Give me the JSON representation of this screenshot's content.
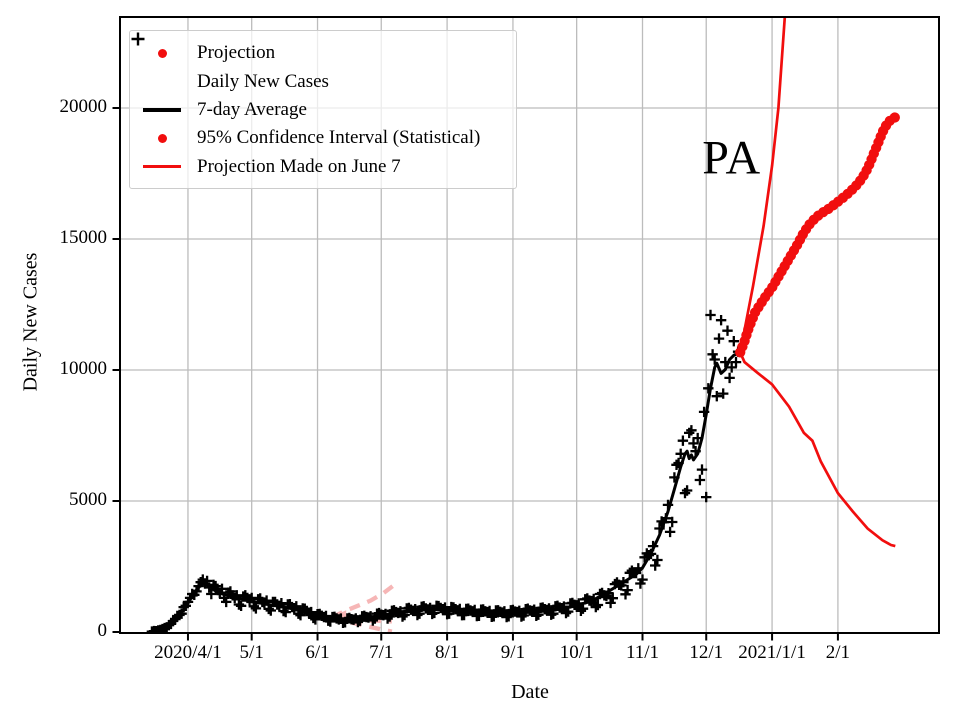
{
  "chart_data": {
    "type": "line",
    "title": "",
    "xlabel": "Date",
    "ylabel": "Daily New Cases",
    "grid": true,
    "legend_position": "upper left",
    "x_axis": {
      "day0_date": "2020/3/15",
      "tick_labels": [
        "2020/4/1",
        "5/1",
        "6/1",
        "7/1",
        "8/1",
        "9/1",
        "10/1",
        "11/1",
        "12/1",
        "2021/1/1",
        "2/1"
      ],
      "tick_days": [
        17,
        47,
        78,
        108,
        139,
        170,
        200,
        231,
        261,
        292,
        323
      ]
    },
    "y_axis": {
      "ticks": [
        0,
        5000,
        10000,
        15000,
        20000
      ],
      "range": [
        0,
        23470
      ]
    },
    "annotations": [
      {
        "text": "PA",
        "day": 273,
        "value": 18100
      }
    ],
    "series": {
      "daily_new_cases": {
        "label": "Daily New Cases",
        "marker": "plus",
        "color": "#000000",
        "start_day": 0,
        "step_days": 1,
        "values": [
          15,
          35,
          30,
          60,
          75,
          110,
          150,
          180,
          260,
          310,
          420,
          500,
          610,
          650,
          700,
          950,
          1000,
          1150,
          1300,
          1450,
          1420,
          1550,
          1750,
          1900,
          2000,
          1850,
          1950,
          1700,
          1450,
          1800,
          1750,
          1600,
          1500,
          1650,
          1300,
          1150,
          1500,
          1550,
          1400,
          1300,
          1400,
          1050,
          1000,
          1350,
          1400,
          1300,
          1200,
          1300,
          980,
          900,
          1250,
          1280,
          1150,
          1100,
          1200,
          880,
          820,
          1150,
          1150,
          1050,
          1000,
          1100,
          800,
          760,
          1050,
          1060,
          950,
          900,
          980,
          700,
          640,
          900,
          890,
          800,
          720,
          760,
          540,
          480,
          680,
          690,
          620,
          570,
          610,
          430,
          400,
          570,
          580,
          520,
          480,
          510,
          350,
          370,
          520,
          540,
          490,
          470,
          520,
          380,
          430,
          600,
          620,
          570,
          550,
          600,
          440,
          510,
          700,
          720,
          660,
          640,
          690,
          510,
          590,
          810,
          830,
          760,
          730,
          790,
          590,
          650,
          900,
          920,
          850,
          810,
          870,
          650,
          700,
          960,
          980,
          900,
          860,
          920,
          690,
          730,
          1000,
          990,
          920,
          870,
          930,
          680,
          700,
          950,
          940,
          870,
          830,
          880,
          640,
          650,
          880,
          890,
          820,
          790,
          840,
          610,
          620,
          850,
          860,
          790,
          760,
          800,
          580,
          600,
          820,
          830,
          770,
          740,
          790,
          570,
          600,
          830,
          840,
          780,
          760,
          810,
          590,
          630,
          870,
          890,
          820,
          800,
          850,
          620,
          660,
          920,
          930,
          870,
          840,
          900,
          660,
          700,
          980,
          1000,
          930,
          910,
          970,
          720,
          780,
          1090,
          1110,
          1040,
          1020,
          1090,
          810,
          890,
          1250,
          1280,
          1200,
          1180,
          1260,
          950,
          1030,
          1450,
          1490,
          1400,
          1380,
          1480,
          1110,
          1290,
          1830,
          1890,
          1800,
          1780,
          1900,
          1440,
          1600,
          2260,
          2340,
          2250,
          2250,
          2430,
          1850,
          2000,
          2850,
          3000,
          2930,
          2980,
          3280,
          2540,
          2750,
          3950,
          4220,
          4190,
          4340,
          4850,
          3820,
          4200,
          5900,
          6380,
          6450,
          6800,
          7300,
          5300,
          5400,
          7600,
          7700,
          7200,
          6900,
          7400,
          5800,
          6200,
          8400,
          5150,
          9300,
          12100,
          10600,
          10400,
          9000,
          11200,
          11900,
          9100,
          10300,
          11500,
          9700,
          10100,
          11100,
          10300,
          10700
        ]
      },
      "seven_day_average": {
        "label": "7-day Average",
        "color": "#000000",
        "points": [
          [
            0,
            20
          ],
          [
            4,
            80
          ],
          [
            8,
            250
          ],
          [
            12,
            520
          ],
          [
            17,
            1100
          ],
          [
            20,
            1500
          ],
          [
            22,
            1700
          ],
          [
            24,
            1850
          ],
          [
            27,
            1760
          ],
          [
            31,
            1500
          ],
          [
            38,
            1340
          ],
          [
            47,
            1160
          ],
          [
            54,
            1060
          ],
          [
            61,
            970
          ],
          [
            68,
            860
          ],
          [
            75,
            670
          ],
          [
            78,
            590
          ],
          [
            82,
            520
          ],
          [
            87,
            465
          ],
          [
            90,
            450
          ],
          [
            94,
            470
          ],
          [
            99,
            520
          ],
          [
            104,
            580
          ],
          [
            108,
            640
          ],
          [
            115,
            730
          ],
          [
            122,
            810
          ],
          [
            129,
            860
          ],
          [
            136,
            890
          ],
          [
            139,
            875
          ],
          [
            146,
            815
          ],
          [
            153,
            775
          ],
          [
            160,
            745
          ],
          [
            167,
            735
          ],
          [
            170,
            745
          ],
          [
            177,
            785
          ],
          [
            184,
            825
          ],
          [
            191,
            875
          ],
          [
            196,
            950
          ],
          [
            200,
            1020
          ],
          [
            207,
            1180
          ],
          [
            214,
            1500
          ],
          [
            219,
            1750
          ],
          [
            224,
            2000
          ],
          [
            228,
            2200
          ],
          [
            231,
            2450
          ],
          [
            235,
            3000
          ],
          [
            239,
            3700
          ],
          [
            243,
            4600
          ],
          [
            246,
            5450
          ],
          [
            249,
            6300
          ],
          [
            251,
            6800
          ],
          [
            252,
            6900
          ],
          [
            253,
            6620
          ],
          [
            254,
            6760
          ],
          [
            255,
            6570
          ],
          [
            257,
            6800
          ],
          [
            259,
            7400
          ],
          [
            261,
            8300
          ],
          [
            263,
            9300
          ],
          [
            265,
            10100
          ],
          [
            266,
            10260
          ],
          [
            268,
            9870
          ],
          [
            270,
            10020
          ],
          [
            272,
            10400
          ],
          [
            274,
            10560
          ],
          [
            277,
            10670
          ]
        ]
      },
      "projection": {
        "label": "Projection",
        "color": "#f10e0e",
        "points": [
          [
            277,
            10670
          ],
          [
            279,
            11100
          ],
          [
            281,
            11600
          ],
          [
            284,
            12200
          ],
          [
            288,
            12700
          ],
          [
            292,
            13150
          ],
          [
            296,
            13700
          ],
          [
            300,
            14250
          ],
          [
            304,
            14800
          ],
          [
            307,
            15250
          ],
          [
            310,
            15600
          ],
          [
            313,
            15850
          ],
          [
            316,
            16020
          ],
          [
            319,
            16170
          ],
          [
            323,
            16420
          ],
          [
            327,
            16680
          ],
          [
            331,
            16980
          ],
          [
            334,
            17280
          ],
          [
            336,
            17530
          ],
          [
            338,
            17880
          ],
          [
            340,
            18280
          ],
          [
            342,
            18680
          ],
          [
            344,
            19080
          ],
          [
            346,
            19380
          ],
          [
            348,
            19560
          ],
          [
            350,
            19650
          ]
        ]
      },
      "confidence_interval_95": {
        "label": "95% Confidence Interval (Statistical)",
        "color": "#f10e0e",
        "upper": [
          [
            277,
            10670
          ],
          [
            283,
            13200
          ],
          [
            288,
            15500
          ],
          [
            292,
            17800
          ],
          [
            295,
            20000
          ],
          [
            298,
            23470
          ]
        ],
        "lower": [
          [
            277,
            10670
          ],
          [
            279,
            10300
          ],
          [
            285,
            9900
          ],
          [
            292,
            9450
          ],
          [
            300,
            8600
          ],
          [
            307,
            7600
          ],
          [
            311,
            7300
          ],
          [
            315,
            6500
          ],
          [
            323,
            5300
          ],
          [
            330,
            4600
          ],
          [
            337,
            3950
          ],
          [
            344,
            3500
          ],
          [
            348,
            3320
          ],
          [
            350,
            3280
          ]
        ]
      },
      "projection_made_june7": {
        "label": "Projection Made on June 7",
        "color": "#f6b6b6",
        "wedge": [
          [
            84.5,
            575
          ],
          [
            91.5,
            830
          ],
          [
            91.5,
            380
          ]
        ],
        "upper": [
          [
            85,
            570
          ],
          [
            91,
            800
          ],
          [
            97,
            1000
          ],
          [
            103,
            1200
          ],
          [
            109,
            1480
          ],
          [
            115,
            1850
          ]
        ],
        "mid": [
          [
            85,
            560
          ],
          [
            91,
            490
          ],
          [
            97,
            450
          ],
          [
            103,
            430
          ],
          [
            109,
            415
          ],
          [
            113,
            405
          ]
        ],
        "lower": [
          [
            85,
            550
          ],
          [
            91,
            420
          ],
          [
            97,
            300
          ],
          [
            103,
            190
          ],
          [
            109,
            80
          ],
          [
            113,
            15
          ]
        ]
      }
    }
  },
  "legend": {
    "items": [
      {
        "series": "projection",
        "marker": "dot",
        "color": "#f10e0e"
      },
      {
        "series": "daily_new_cases",
        "marker": "plus",
        "color": "#000000"
      },
      {
        "series": "seven_day_average",
        "marker": "line",
        "color": "#000000"
      },
      {
        "series": "confidence_interval_95",
        "marker": "dot",
        "color": "#f10e0e"
      },
      {
        "series": "projection_made_june7",
        "marker": "line",
        "color": "#f10e0e"
      }
    ]
  },
  "style": {
    "grid_color": "#bcbcbc",
    "axis_color": "#000000",
    "background": "#ffffff"
  }
}
